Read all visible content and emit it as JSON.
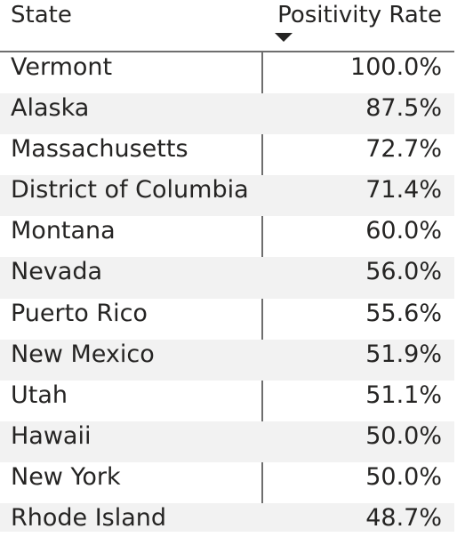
{
  "table": {
    "columns": {
      "state": "State",
      "rate": "Positivity Rate"
    },
    "sort": {
      "column": "rate",
      "direction": "descending",
      "icon": "sort-descending-icon"
    },
    "rows": [
      {
        "state": "Vermont",
        "rate": "100.0%"
      },
      {
        "state": "Alaska",
        "rate": "87.5%"
      },
      {
        "state": "Massachusetts",
        "rate": "72.7%"
      },
      {
        "state": "District of Columbia",
        "rate": "71.4%"
      },
      {
        "state": "Montana",
        "rate": "60.0%"
      },
      {
        "state": "Nevada",
        "rate": "56.0%"
      },
      {
        "state": "Puerto Rico",
        "rate": "55.6%"
      },
      {
        "state": "New Mexico",
        "rate": "51.9%"
      },
      {
        "state": "Utah",
        "rate": "51.1%"
      },
      {
        "state": "Hawaii",
        "rate": "50.0%"
      },
      {
        "state": "New York",
        "rate": "50.0%"
      },
      {
        "state": "Rhode Island",
        "rate": "48.7%"
      }
    ]
  },
  "colors": {
    "text": "#252423",
    "alt_row": "#f2f2f2",
    "divider": "#6e6e6e"
  }
}
